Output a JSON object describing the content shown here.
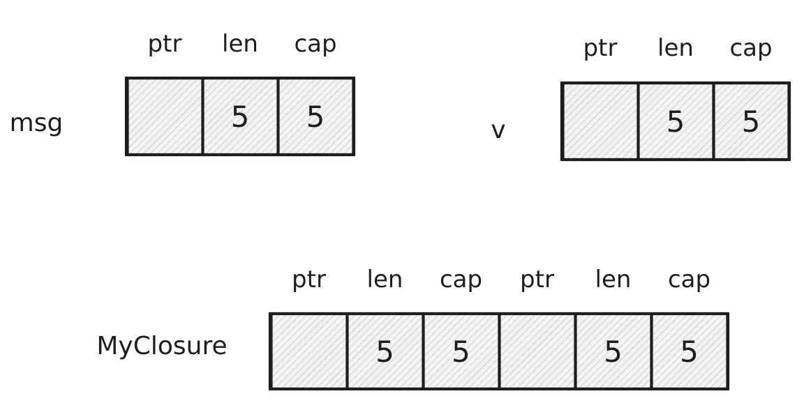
{
  "colors": {
    "stroke": "#1e1e1e",
    "hatch": "#bdbdbd",
    "fill": "#f3f3f3"
  },
  "structs": [
    {
      "id": "msg",
      "label": "msg",
      "cells": [
        {
          "field": "ptr",
          "value": ""
        },
        {
          "field": "len",
          "value": "5"
        },
        {
          "field": "cap",
          "value": "5"
        }
      ]
    },
    {
      "id": "v",
      "label": "v",
      "cells": [
        {
          "field": "ptr",
          "value": ""
        },
        {
          "field": "len",
          "value": "5"
        },
        {
          "field": "cap",
          "value": "5"
        }
      ]
    },
    {
      "id": "myclosure",
      "label": "MyClosure",
      "cells": [
        {
          "field": "ptr",
          "value": ""
        },
        {
          "field": "len",
          "value": "5"
        },
        {
          "field": "cap",
          "value": "5"
        },
        {
          "field": "ptr",
          "value": ""
        },
        {
          "field": "len",
          "value": "5"
        },
        {
          "field": "cap",
          "value": "5"
        }
      ]
    }
  ]
}
